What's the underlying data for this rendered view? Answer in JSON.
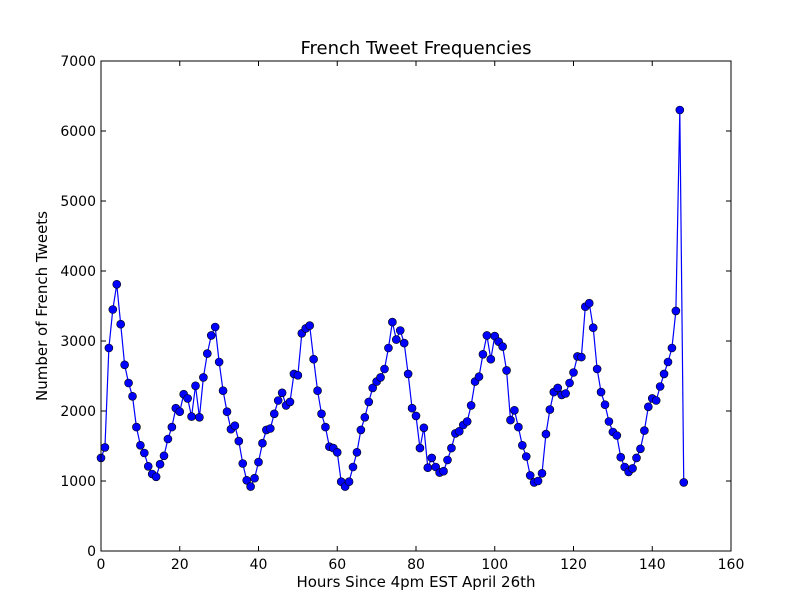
{
  "chart_data": {
    "type": "line",
    "title": "French Tweet Frequencies",
    "xlabel": "Hours Since 4pm EST April 26th",
    "ylabel": "Number of French Tweets",
    "xlim": [
      0,
      160
    ],
    "ylim": [
      0,
      7000
    ],
    "xticks": [
      0,
      20,
      40,
      60,
      80,
      100,
      120,
      140,
      160
    ],
    "yticks": [
      0,
      1000,
      2000,
      3000,
      4000,
      5000,
      6000,
      7000
    ],
    "xtick_labels": [
      "0",
      "20",
      "40",
      "60",
      "80",
      "100",
      "120",
      "140",
      "160"
    ],
    "ytick_labels": [
      "0",
      "1000",
      "2000",
      "3000",
      "4000",
      "5000",
      "6000",
      "7000"
    ],
    "grid": false,
    "series": [
      {
        "color": "#0000ff",
        "marker": "circle",
        "x": [
          0,
          1,
          2,
          3,
          4,
          5,
          6,
          7,
          8,
          9,
          10,
          11,
          12,
          13,
          14,
          15,
          16,
          17,
          18,
          19,
          20,
          21,
          22,
          23,
          24,
          25,
          26,
          27,
          28,
          29,
          30,
          31,
          32,
          33,
          34,
          35,
          36,
          37,
          38,
          39,
          40,
          41,
          42,
          43,
          44,
          45,
          46,
          47,
          48,
          49,
          50,
          51,
          52,
          53,
          54,
          55,
          56,
          57,
          58,
          59,
          60,
          61,
          62,
          63,
          64,
          65,
          66,
          67,
          68,
          69,
          70,
          71,
          72,
          73,
          74,
          75,
          76,
          77,
          78,
          79,
          80,
          81,
          82,
          83,
          84,
          85,
          86,
          87,
          88,
          89,
          90,
          91,
          92,
          93,
          94,
          95,
          96,
          97,
          98,
          99,
          100,
          101,
          102,
          103,
          104,
          105,
          106,
          107,
          108,
          109,
          110,
          111,
          112,
          113,
          114,
          115,
          116,
          117,
          118,
          119,
          120,
          121,
          122,
          123,
          124,
          125,
          126,
          127,
          128,
          129,
          130,
          131,
          132,
          133,
          134,
          135,
          136,
          137,
          138,
          139,
          140,
          141,
          142,
          143,
          144,
          145,
          146,
          147,
          148
        ],
        "values": [
          1330,
          1480,
          2900,
          3450,
          3810,
          3240,
          2660,
          2400,
          2210,
          1770,
          1510,
          1400,
          1210,
          1100,
          1060,
          1240,
          1360,
          1600,
          1770,
          2040,
          1990,
          2240,
          2180,
          1920,
          2360,
          1910,
          2480,
          2820,
          3080,
          3200,
          2700,
          2290,
          1990,
          1740,
          1790,
          1570,
          1250,
          1010,
          920,
          1040,
          1270,
          1540,
          1730,
          1750,
          1960,
          2150,
          2260,
          2080,
          2130,
          2530,
          2510,
          3110,
          3180,
          3220,
          2740,
          2290,
          1960,
          1770,
          1490,
          1470,
          1410,
          990,
          920,
          990,
          1200,
          1410,
          1730,
          1910,
          2130,
          2330,
          2420,
          2480,
          2600,
          2900,
          3270,
          3020,
          3150,
          2970,
          2530,
          2040,
          1930,
          1470,
          1760,
          1190,
          1330,
          1200,
          1120,
          1140,
          1300,
          1470,
          1680,
          1710,
          1800,
          1850,
          2080,
          2420,
          2490,
          2810,
          3080,
          2740,
          3070,
          2990,
          2920,
          2580,
          1870,
          2010,
          1770,
          1510,
          1350,
          1080,
          980,
          1000,
          1110,
          1670,
          2020,
          2270,
          2330,
          2230,
          2250,
          2400,
          2550,
          2780,
          2770,
          3490,
          3540,
          3190,
          2600,
          2270,
          2090,
          1850,
          1700,
          1650,
          1340,
          1200,
          1130,
          1180,
          1330,
          1460,
          1720,
          2060,
          2180,
          2150,
          2350,
          2530,
          2700,
          2900,
          3430,
          6300,
          980
        ]
      }
    ]
  }
}
